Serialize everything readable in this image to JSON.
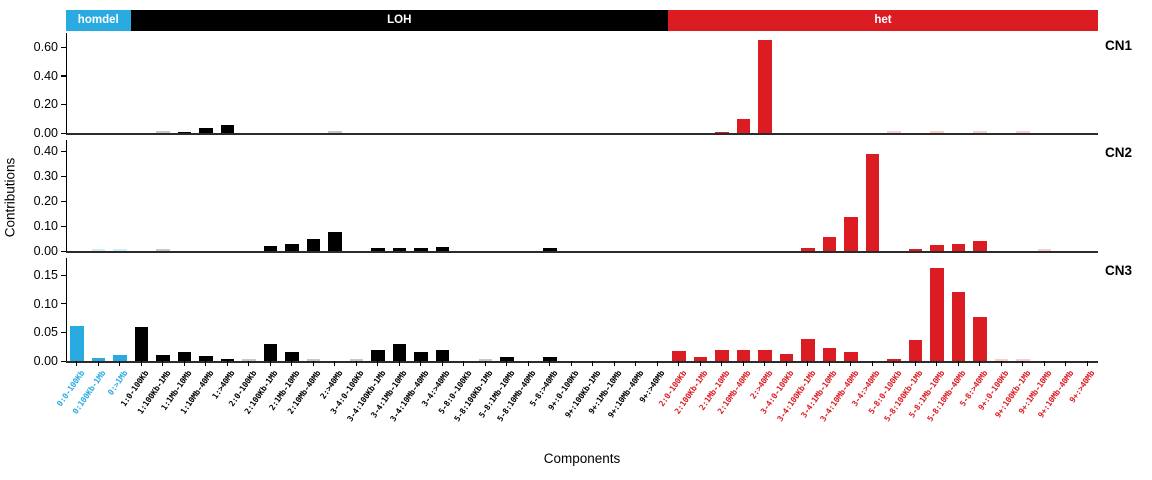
{
  "chart_data": {
    "type": "bar",
    "title": "",
    "xlabel": "Components",
    "ylabel": "Contributions",
    "grid": false,
    "legend_position": "top-strip",
    "groups": [
      {
        "label": "homdel",
        "color": "#29ABE2",
        "count": 3
      },
      {
        "label": "LOH",
        "color": "#000000",
        "count": 25
      },
      {
        "label": "het",
        "color": "#DB1C22",
        "count": 20
      }
    ],
    "categories": [
      "0:0-100Kb",
      "0:100Kb-1Mb",
      "0:>1Mb",
      "1:0-100Kb",
      "1:100Kb-1Mb",
      "1:1Mb-10Mb",
      "1:10Mb-40Mb",
      "1:>40Mb",
      "2:0-100Kb",
      "2:100Kb-1Mb",
      "2:1Mb-10Mb",
      "2:10Mb-40Mb",
      "2:>40Mb",
      "3-4:0-100Kb",
      "3-4:100Kb-1Mb",
      "3-4:1Mb-10Mb",
      "3-4:10Mb-40Mb",
      "3-4:>40Mb",
      "5-8:0-100Kb",
      "5-8:100Kb-1Mb",
      "5-8:1Mb-10Mb",
      "5-8:10Mb-40Mb",
      "5-8:>40Mb",
      "9+:0-100Kb",
      "9+:100Kb-1Mb",
      "9+:1Mb-10Mb",
      "9+:10Mb-40Mb",
      "9+:>40Mb",
      "2:0-100Kb",
      "2:100Kb-1Mb",
      "2:1Mb-10Mb",
      "2:10Mb-40Mb",
      "2:>40Mb",
      "3-4:0-100Kb",
      "3-4:100Kb-1Mb",
      "3-4:1Mb-10Mb",
      "3-4:10Mb-40Mb",
      "3-4:>40Mb",
      "5-8:0-100Kb",
      "5-8:100Kb-1Mb",
      "5-8:1Mb-10Mb",
      "5-8:10Mb-40Mb",
      "5-8:>40Mb",
      "9+:0-100Kb",
      "9+:100Kb-1Mb",
      "9+:1Mb-10Mb",
      "9+:10Mb-40Mb",
      "9+:>40Mb"
    ],
    "series": [
      {
        "name": "CN1",
        "ymax": 0.7,
        "ytick_values": [
          0.0,
          0.2,
          0.4,
          0.6
        ],
        "ytick_labels": [
          "0.00",
          "0.20",
          "0.40",
          "0.60"
        ],
        "values": [
          0,
          0,
          0,
          0,
          0.004,
          0.009,
          0.032,
          0.058,
          0,
          0,
          0,
          0,
          0.004,
          0,
          0,
          0,
          0,
          0,
          0,
          0,
          0,
          0,
          0,
          0,
          0,
          0,
          0,
          0,
          0,
          0,
          0.01,
          0.099,
          0.65,
          0,
          0,
          0,
          0,
          0,
          0.003,
          0,
          0.003,
          0,
          0.003,
          0,
          0.003,
          0,
          0,
          0
        ],
        "faint": [
          4,
          12,
          38,
          40,
          42,
          44
        ]
      },
      {
        "name": "CN2",
        "ymax": 0.445,
        "ytick_values": [
          0.0,
          0.1,
          0.2,
          0.3,
          0.4
        ],
        "ytick_labels": [
          "0.00",
          "0.10",
          "0.20",
          "0.30",
          "0.40"
        ],
        "values": [
          0,
          0.004,
          0.002,
          0,
          0.003,
          0,
          0,
          0,
          0,
          0.021,
          0.029,
          0.05,
          0.077,
          0,
          0.013,
          0.013,
          0.012,
          0.015,
          0,
          0,
          0,
          0,
          0.012,
          0,
          0,
          0,
          0,
          0,
          0,
          0,
          0,
          0,
          0,
          0,
          0.011,
          0.056,
          0.135,
          0.39,
          0,
          0.008,
          0.023,
          0.027,
          0.042,
          0,
          0,
          0.003,
          0,
          0
        ],
        "faint": [
          1,
          2,
          4,
          45
        ]
      },
      {
        "name": "CN3",
        "ymax": 0.18,
        "ytick_values": [
          0.0,
          0.05,
          0.1,
          0.15
        ],
        "ytick_labels": [
          "0.00",
          "0.05",
          "0.10",
          "0.15"
        ],
        "values": [
          0.062,
          0.005,
          0.011,
          0.059,
          0.01,
          0.016,
          0.009,
          0.003,
          0.003,
          0.029,
          0.015,
          0.003,
          0,
          0.003,
          0.019,
          0.029,
          0.016,
          0.02,
          0,
          0.003,
          0.007,
          0,
          0.007,
          0,
          0,
          0,
          0,
          0,
          0.017,
          0.007,
          0.019,
          0.02,
          0.019,
          0.012,
          0.038,
          0.023,
          0.016,
          0,
          0.004,
          0.036,
          0.163,
          0.12,
          0.077,
          0.003,
          0.003,
          0,
          0,
          0
        ],
        "faint": [
          8,
          11,
          13,
          19,
          43,
          44
        ]
      }
    ]
  }
}
